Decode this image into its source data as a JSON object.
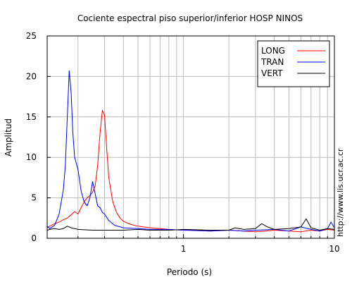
{
  "chart_data": {
    "type": "line",
    "title": "Cociente espectral piso superior/inferior  HOSP NINOS",
    "xlabel": "Periodo (s)",
    "ylabel": "Amplitud",
    "xscale": "log",
    "xlim": [
      0.125,
      10
    ],
    "ylim": [
      0,
      25
    ],
    "xticks": [
      {
        "value": 1,
        "label": "1"
      },
      {
        "value": 10,
        "label": "10"
      }
    ],
    "yticks": [
      0,
      5,
      10,
      15,
      20,
      25
    ],
    "grid": true,
    "legend_position": "top-right",
    "watermark": "http://www.lis.ucr.ac.cr",
    "series": [
      {
        "name": "LONG",
        "color": "#ff0000",
        "x": [
          0.125,
          0.13,
          0.14,
          0.15,
          0.16,
          0.17,
          0.18,
          0.19,
          0.2,
          0.21,
          0.22,
          0.23,
          0.24,
          0.25,
          0.26,
          0.27,
          0.28,
          0.29,
          0.3,
          0.31,
          0.32,
          0.34,
          0.36,
          0.38,
          0.4,
          0.45,
          0.5,
          0.6,
          0.7,
          0.8,
          1.0,
          1.2,
          1.5,
          2.0,
          2.5,
          3.0,
          3.5,
          4.0,
          5.0,
          6.0,
          7.0,
          8.0,
          9.0,
          10.0
        ],
        "y": [
          1.3,
          1.5,
          1.8,
          2.0,
          2.3,
          2.5,
          2.9,
          3.3,
          3.0,
          3.8,
          4.5,
          5.0,
          5.3,
          5.7,
          6.5,
          9.0,
          13.0,
          15.8,
          15.2,
          11.0,
          7.5,
          4.5,
          3.2,
          2.5,
          2.1,
          1.7,
          1.5,
          1.3,
          1.2,
          1.1,
          1.0,
          1.0,
          0.9,
          1.0,
          0.9,
          0.8,
          0.9,
          1.0,
          0.9,
          0.8,
          1.0,
          0.9,
          1.1,
          1.0
        ]
      },
      {
        "name": "TRAN",
        "color": "#0000ff",
        "x": [
          0.125,
          0.13,
          0.14,
          0.15,
          0.16,
          0.165,
          0.17,
          0.175,
          0.18,
          0.185,
          0.19,
          0.2,
          0.21,
          0.22,
          0.23,
          0.24,
          0.25,
          0.26,
          0.27,
          0.28,
          0.29,
          0.3,
          0.32,
          0.35,
          0.4,
          0.5,
          0.6,
          0.8,
          1.0,
          1.5,
          2.0,
          2.5,
          3.0,
          4.0,
          5.0,
          6.0,
          7.0,
          8.0,
          9.0,
          9.5,
          10.0
        ],
        "y": [
          1.5,
          1.2,
          1.6,
          3.0,
          6.0,
          9.0,
          15.0,
          20.7,
          18.0,
          13.0,
          10.0,
          8.5,
          5.8,
          4.5,
          4.0,
          5.0,
          7.0,
          5.5,
          4.0,
          3.8,
          3.2,
          3.0,
          2.2,
          1.6,
          1.3,
          1.2,
          1.1,
          1.1,
          1.0,
          0.9,
          1.0,
          0.9,
          1.0,
          1.1,
          0.9,
          1.4,
          1.1,
          0.9,
          1.2,
          2.0,
          1.3
        ]
      },
      {
        "name": "VERT",
        "color": "#000000",
        "x": [
          0.125,
          0.13,
          0.14,
          0.15,
          0.16,
          0.17,
          0.18,
          0.2,
          0.25,
          0.3,
          0.4,
          0.5,
          0.6,
          0.8,
          1.0,
          1.5,
          2.0,
          2.2,
          2.5,
          3.0,
          3.3,
          3.6,
          4.0,
          5.0,
          6.0,
          6.5,
          7.0,
          8.0,
          9.0,
          10.0
        ],
        "y": [
          1.0,
          1.1,
          1.2,
          1.1,
          1.2,
          1.5,
          1.3,
          1.1,
          1.0,
          1.0,
          1.0,
          1.1,
          1.0,
          1.0,
          1.1,
          1.0,
          1.0,
          1.3,
          1.1,
          1.2,
          1.8,
          1.4,
          1.1,
          1.2,
          1.4,
          2.4,
          1.3,
          1.0,
          1.2,
          1.1
        ]
      }
    ]
  }
}
